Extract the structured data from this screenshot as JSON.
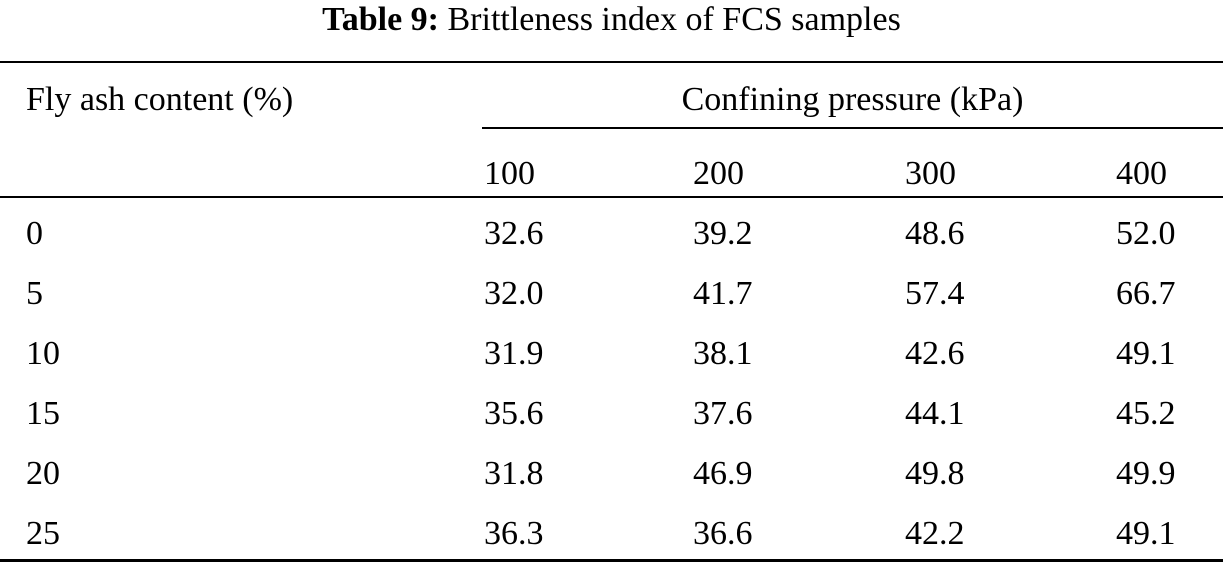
{
  "caption": {
    "label": "Table 9:",
    "text": "Brittleness index of FCS samples"
  },
  "table": {
    "stub_header": "Fly ash content (%)",
    "span_header": "Confining pressure (kPa)",
    "columns": [
      "100",
      "200",
      "300",
      "400"
    ],
    "rows": [
      {
        "label": "0",
        "values": [
          "32.6",
          "39.2",
          "48.6",
          "52.0"
        ]
      },
      {
        "label": "5",
        "values": [
          "32.0",
          "41.7",
          "57.4",
          "66.7"
        ]
      },
      {
        "label": "10",
        "values": [
          "31.9",
          "38.1",
          "42.6",
          "49.1"
        ]
      },
      {
        "label": "15",
        "values": [
          "35.6",
          "37.6",
          "44.1",
          "45.2"
        ]
      },
      {
        "label": "20",
        "values": [
          "31.8",
          "46.9",
          "49.8",
          "49.9"
        ]
      },
      {
        "label": "25",
        "values": [
          "36.3",
          "36.6",
          "42.2",
          "49.1"
        ]
      }
    ]
  }
}
